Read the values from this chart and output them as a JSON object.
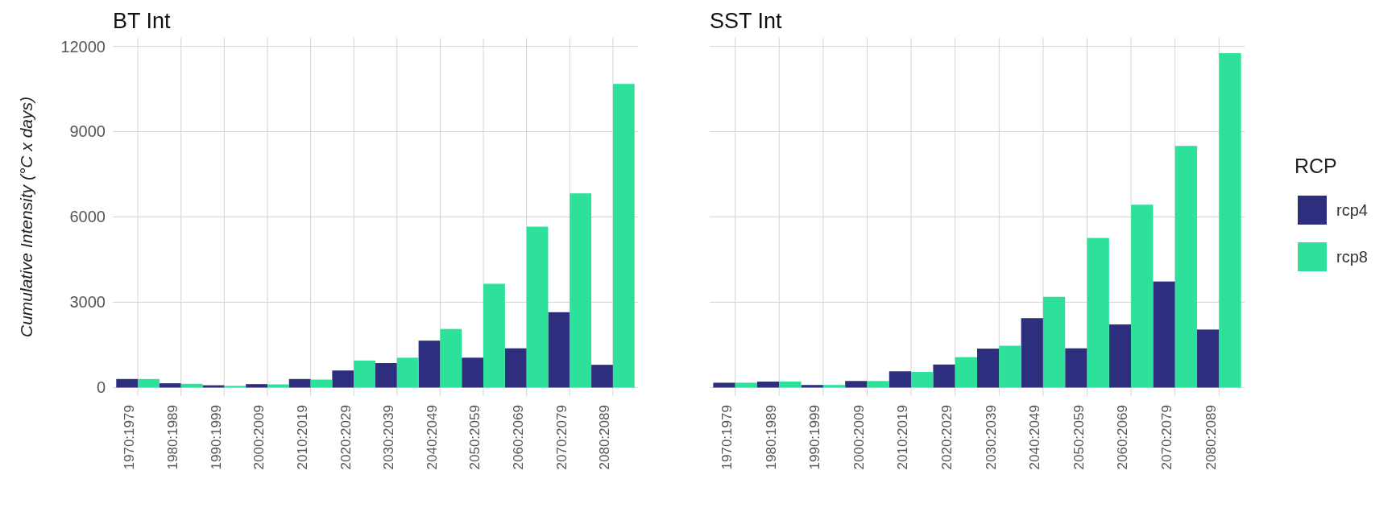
{
  "chart_data": [
    {
      "type": "bar",
      "title": "BT Int",
      "ylabel": "Cumulative Intensity (°C x days)",
      "categories": [
        "1970:1979",
        "1980:1989",
        "1990:1999",
        "2000:2009",
        "2010:2019",
        "2020:2029",
        "2030:2039",
        "2040:2049",
        "2050:2059",
        "2060:2069",
        "2070:2079",
        "2080:2089"
      ],
      "series": [
        {
          "color": "#2e2e7e",
          "values": [
            300,
            150,
            80,
            120,
            300,
            600,
            860,
            1650,
            1050,
            1380,
            2650,
            800
          ]
        },
        {
          "color": "#2ee19b",
          "values": [
            300,
            130,
            60,
            110,
            280,
            950,
            1050,
            2060,
            3650,
            5660,
            6830,
            10680
          ]
        }
      ],
      "ylim": [
        -300,
        12300
      ],
      "yticks": [
        0,
        3000,
        6000,
        9000,
        12000
      ],
      "grid": true,
      "legend": false
    },
    {
      "type": "bar",
      "title": "SST Int",
      "legend_title": "RCP",
      "categories": [
        "1970:1979",
        "1980:1989",
        "1990:1999",
        "2000:2009",
        "2010:2019",
        "2020:2029",
        "2030:2039",
        "2040:2049",
        "2050:2059",
        "2060:2069",
        "2070:2079",
        "2080:2089"
      ],
      "series": [
        {
          "name": "rcp4",
          "color": "#2e2e7e",
          "values": [
            170,
            210,
            90,
            230,
            570,
            810,
            1370,
            2440,
            1380,
            2220,
            3730,
            2040
          ]
        },
        {
          "name": "rcp8",
          "color": "#2ee19b",
          "values": [
            170,
            210,
            90,
            230,
            550,
            1070,
            1470,
            3190,
            5260,
            6430,
            8500,
            11760
          ]
        }
      ],
      "ylim": [
        -300,
        12300
      ],
      "yticks": [
        0,
        3000,
        6000,
        9000,
        12000
      ],
      "tick_labels": "x",
      "grid": true,
      "legend": "right"
    }
  ]
}
